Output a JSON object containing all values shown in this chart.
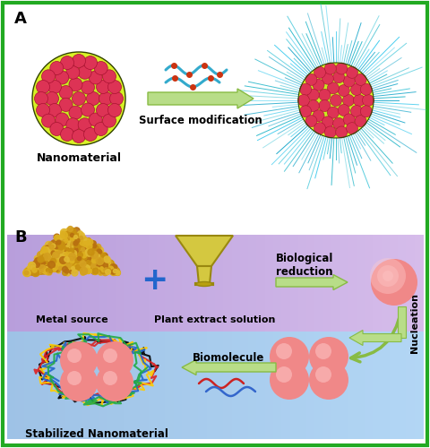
{
  "border_color": "#22aa22",
  "panel_A_label": "A",
  "panel_B_label": "B",
  "nanomaterial_label": "Nanomaterial",
  "surface_mod_label": "Surface modification",
  "metal_source_label": "Metal source",
  "plant_extract_label": "Plant extract solution",
  "bio_reduction_label": "Biological\nreduction",
  "nucleation_label": "Nucleation",
  "biomolecule_label": "Biomolecule",
  "stabilized_label": "Stabilized Nanomaterial",
  "arrow_color": "#b8dd88",
  "arrow_edge": "#88bb44",
  "blue_plus": "#2266cc",
  "panel_A_bg": "#ffffff",
  "panel_B_top_bg": "#c0a8dc",
  "panel_B_bot_bg": "#a8c8e8",
  "pink_fill": "#f08888",
  "pink_light": "#ffbbbb",
  "spike_color": "#44bbcc",
  "chain_colors": [
    "#000000",
    "#dd2222",
    "#ffcc00",
    "#2266cc",
    "#22aa44"
  ]
}
